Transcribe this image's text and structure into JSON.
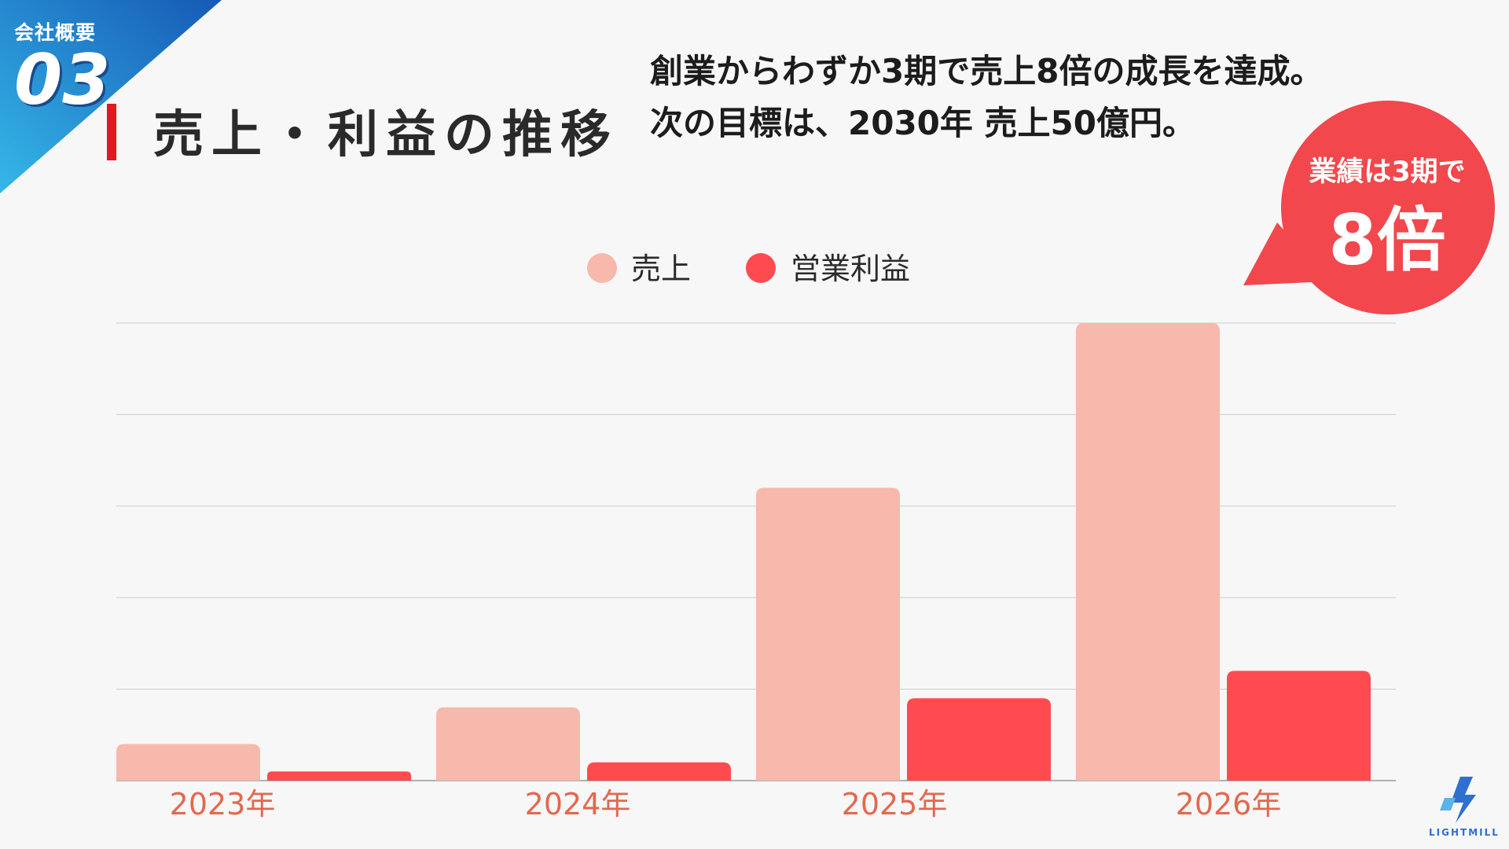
{
  "section": {
    "label": "会社概要",
    "number": "03"
  },
  "page_title": "売上・利益の推移",
  "headline": {
    "line1": "創業からわずか3期で売上8倍の成長を達成。",
    "line2": "次の目標は、2030年 売上50億円。"
  },
  "badge": {
    "line1": "業績は3期で",
    "line2": "8倍"
  },
  "colors": {
    "accent": "#e4181f",
    "revenue": "#f7b9ab",
    "profit": "#ff4b4f",
    "axis_label": "#e3684e",
    "corner_gradient_start": "#35b7e8",
    "corner_gradient_end": "#1659b5",
    "badge": "#f2474c"
  },
  "logo": {
    "icon": "lightning-logo-icon",
    "text": "LIGHTMILL"
  },
  "chart_data": {
    "type": "bar",
    "title": "",
    "xlabel": "",
    "ylabel": "",
    "categories": [
      "2023年",
      "2024年",
      "2025年",
      "2026年"
    ],
    "series": [
      {
        "name": "売上",
        "values": [
          8,
          16,
          64,
          100
        ]
      },
      {
        "name": "営業利益",
        "values": [
          2,
          4,
          18,
          24
        ]
      }
    ],
    "ylim": [
      0,
      100
    ],
    "grid": true,
    "legend_position": "top-center",
    "y_tick_labels_visible": false
  }
}
